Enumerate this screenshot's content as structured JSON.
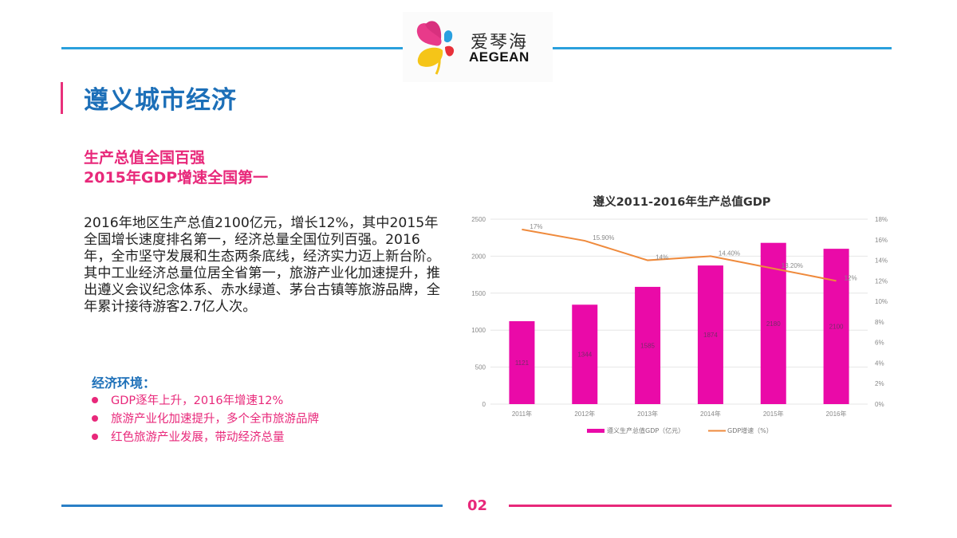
{
  "header": {
    "logo": {
      "cn_text": "爱琴海",
      "en_text": "AEGEAN",
      "icon": "flower-logo-icon"
    },
    "line_color": "#2aa0dc"
  },
  "page_title": "遵义城市经济",
  "subtitles": [
    "生产总值全国百强",
    "2015年GDP增速全国第一"
  ],
  "body_paragraph": "2016年地区生产总值2100亿元，增长12%，其中2015年全国增长速度排名第一，经济总量全国位列百强。2016年，全市坚守发展和生态两条底线，经济实力迈上新台阶。其中工业经济总量位居全省第一，旅游产业化加速提升，推出遵义会议纪念体系、赤水绿道、茅台古镇等旅游品牌，全年累计接待游客2.7亿人次。",
  "economic_environment": {
    "title": "经济环境：",
    "items": [
      "GDP逐年上升，2016年增速12%",
      "旅游产业化加速提升，多个全市旅游品牌",
      "红色旅游产业发展，带动经济总量"
    ]
  },
  "footer": {
    "page_number": "02"
  },
  "colors": {
    "brand_blue": "#1c6fb8",
    "accent_pink": "#e8287a",
    "bar": "#ea0aa8",
    "line": "#ef8a3c"
  },
  "chart_data": {
    "type": "bar",
    "title": "遵义2011-2016年生产总值GDP",
    "categories": [
      "2011年",
      "2012年",
      "2013年",
      "2014年",
      "2015年",
      "2016年"
    ],
    "series": [
      {
        "name": "遵义生产总值GDP（亿元）",
        "type": "bar",
        "axis": "left",
        "values": [
          1121,
          1344,
          1585,
          1874,
          2180,
          2100
        ],
        "labels": [
          "1121",
          "1344",
          "1585",
          "1874",
          "2180",
          "2100"
        ]
      },
      {
        "name": "GDP增速（%）",
        "type": "line",
        "axis": "right",
        "values": [
          17,
          15.9,
          14,
          14.4,
          13.2,
          12
        ],
        "labels": [
          "17%",
          "15.90%",
          "14%",
          "14.40%",
          "13.20%",
          "12%"
        ]
      }
    ],
    "y_left": {
      "ticks": [
        "0",
        "500",
        "1000",
        "1500",
        "2000",
        "2500"
      ],
      "ylim": [
        0,
        2500
      ]
    },
    "y_right": {
      "ticks": [
        "0%",
        "2%",
        "4%",
        "6%",
        "8%",
        "10%",
        "12%",
        "14%",
        "16%",
        "18%"
      ],
      "ylim": [
        0,
        18
      ]
    },
    "grid": true,
    "legend_position": "bottom"
  }
}
